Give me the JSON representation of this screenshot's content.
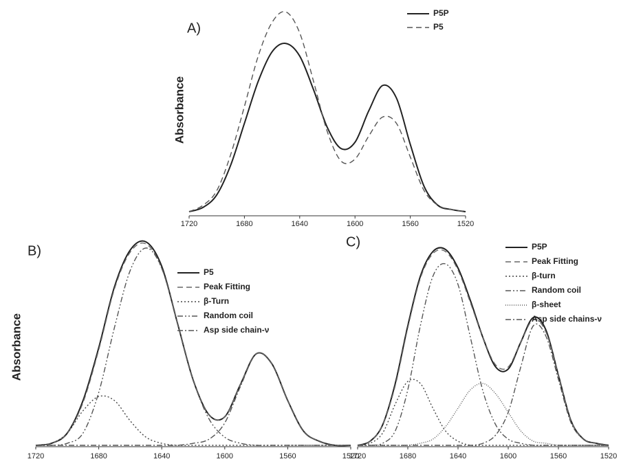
{
  "chart_data": [
    {
      "type": "line",
      "title": "A)",
      "ylabel": "Absorbance",
      "x": [
        1720,
        1710,
        1700,
        1690,
        1680,
        1670,
        1660,
        1650,
        1640,
        1630,
        1620,
        1610,
        1600,
        1590,
        1580,
        1570,
        1560,
        1550,
        1540,
        1530,
        1520
      ],
      "xlim": [
        1720,
        1520
      ],
      "xticks": [
        1720,
        1680,
        1640,
        1600,
        1560,
        1520
      ],
      "ylim": [
        0,
        1
      ],
      "series": [
        {
          "name": "P5P",
          "color": "#222222",
          "dash": "solid",
          "values": [
            0.0,
            0.02,
            0.08,
            0.22,
            0.42,
            0.62,
            0.76,
            0.8,
            0.74,
            0.58,
            0.4,
            0.3,
            0.33,
            0.48,
            0.6,
            0.54,
            0.32,
            0.12,
            0.03,
            0.01,
            0.0
          ]
        },
        {
          "name": "P5",
          "color": "#555555",
          "dash": "dash",
          "values": [
            0.0,
            0.03,
            0.1,
            0.27,
            0.5,
            0.74,
            0.9,
            0.95,
            0.85,
            0.62,
            0.38,
            0.24,
            0.25,
            0.36,
            0.45,
            0.42,
            0.26,
            0.1,
            0.03,
            0.01,
            0.0
          ]
        }
      ]
    },
    {
      "type": "line",
      "title": "B)",
      "ylabel": "Absorbance",
      "x": [
        1720,
        1710,
        1700,
        1690,
        1680,
        1670,
        1660,
        1650,
        1640,
        1630,
        1620,
        1610,
        1600,
        1590,
        1580,
        1570,
        1560,
        1550,
        1540,
        1530,
        1520
      ],
      "xlim": [
        1720,
        1520
      ],
      "xticks": [
        1720,
        1680,
        1640,
        1600,
        1560,
        1520
      ],
      "ylim": [
        0,
        1
      ],
      "series": [
        {
          "name": "P5",
          "color": "#222222",
          "dash": "solid",
          "values": [
            0.0,
            0.01,
            0.06,
            0.22,
            0.48,
            0.78,
            0.96,
            1.0,
            0.88,
            0.6,
            0.32,
            0.15,
            0.14,
            0.3,
            0.45,
            0.4,
            0.22,
            0.07,
            0.02,
            0.0,
            0.0
          ]
        },
        {
          "name": "Peak Fitting",
          "color": "#666666",
          "dash": "dash",
          "values": [
            0.0,
            0.01,
            0.06,
            0.21,
            0.47,
            0.77,
            0.95,
            0.99,
            0.87,
            0.6,
            0.32,
            0.15,
            0.14,
            0.3,
            0.45,
            0.4,
            0.22,
            0.07,
            0.02,
            0.0,
            0.0
          ]
        },
        {
          "name": "β-Turn",
          "color": "#444444",
          "dash": "dot",
          "values": [
            0.0,
            0.01,
            0.06,
            0.17,
            0.24,
            0.22,
            0.12,
            0.04,
            0.01,
            0.0,
            0.0,
            0.0,
            0.0,
            0.0,
            0.0,
            0.0,
            0.0,
            0.0,
            0.0,
            0.0,
            0.0
          ]
        },
        {
          "name": "Random coil",
          "color": "#555555",
          "dash": "dashdotdot",
          "values": [
            0.0,
            0.0,
            0.01,
            0.06,
            0.26,
            0.58,
            0.86,
            0.97,
            0.87,
            0.6,
            0.32,
            0.13,
            0.04,
            0.01,
            0.0,
            0.0,
            0.0,
            0.0,
            0.0,
            0.0,
            0.0
          ]
        },
        {
          "name": "Asp side chain-ν",
          "color": "#555555",
          "dash": "dashdot",
          "values": [
            0.0,
            0.0,
            0.0,
            0.0,
            0.0,
            0.0,
            0.0,
            0.0,
            0.0,
            0.0,
            0.01,
            0.03,
            0.11,
            0.29,
            0.45,
            0.4,
            0.22,
            0.07,
            0.02,
            0.0,
            0.0
          ]
        }
      ]
    },
    {
      "type": "line",
      "title": "C)",
      "x": [
        1720,
        1710,
        1700,
        1690,
        1680,
        1670,
        1660,
        1650,
        1640,
        1630,
        1620,
        1610,
        1600,
        1590,
        1580,
        1570,
        1560,
        1550,
        1540,
        1530,
        1520
      ],
      "xlim": [
        1720,
        1520
      ],
      "xticks": [
        1720,
        1680,
        1640,
        1600,
        1560,
        1520
      ],
      "ylim": [
        0,
        1
      ],
      "series": [
        {
          "name": "P5P",
          "color": "#222222",
          "dash": "solid",
          "values": [
            0.0,
            0.02,
            0.1,
            0.3,
            0.58,
            0.82,
            0.94,
            0.95,
            0.86,
            0.7,
            0.52,
            0.38,
            0.37,
            0.5,
            0.62,
            0.56,
            0.34,
            0.12,
            0.03,
            0.01,
            0.0
          ]
        },
        {
          "name": "Peak Fitting",
          "color": "#666666",
          "dash": "dash",
          "values": [
            0.0,
            0.02,
            0.1,
            0.29,
            0.57,
            0.81,
            0.93,
            0.94,
            0.85,
            0.69,
            0.52,
            0.39,
            0.38,
            0.5,
            0.61,
            0.55,
            0.34,
            0.12,
            0.03,
            0.01,
            0.0
          ]
        },
        {
          "name": "β-turn",
          "color": "#444444",
          "dash": "dot",
          "values": [
            0.0,
            0.01,
            0.06,
            0.2,
            0.31,
            0.3,
            0.18,
            0.07,
            0.02,
            0.0,
            0.0,
            0.0,
            0.0,
            0.0,
            0.0,
            0.0,
            0.0,
            0.0,
            0.0,
            0.0,
            0.0
          ]
        },
        {
          "name": "Random coil",
          "color": "#555555",
          "dash": "dashdotdot",
          "values": [
            0.0,
            0.0,
            0.01,
            0.07,
            0.27,
            0.58,
            0.82,
            0.88,
            0.78,
            0.52,
            0.26,
            0.1,
            0.03,
            0.01,
            0.0,
            0.0,
            0.0,
            0.0,
            0.0,
            0.0,
            0.0
          ]
        },
        {
          "name": "β-sheet",
          "color": "#555555",
          "dash": "shortdot",
          "values": [
            0.0,
            0.0,
            0.0,
            0.0,
            0.0,
            0.01,
            0.03,
            0.09,
            0.18,
            0.27,
            0.3,
            0.25,
            0.16,
            0.07,
            0.02,
            0.01,
            0.0,
            0.0,
            0.0,
            0.0,
            0.0
          ]
        },
        {
          "name": "Asp side chains-ν",
          "color": "#555555",
          "dash": "dashdot",
          "values": [
            0.0,
            0.0,
            0.0,
            0.0,
            0.0,
            0.0,
            0.0,
            0.0,
            0.0,
            0.0,
            0.01,
            0.05,
            0.16,
            0.38,
            0.58,
            0.53,
            0.32,
            0.11,
            0.03,
            0.01,
            0.0
          ]
        }
      ]
    }
  ]
}
